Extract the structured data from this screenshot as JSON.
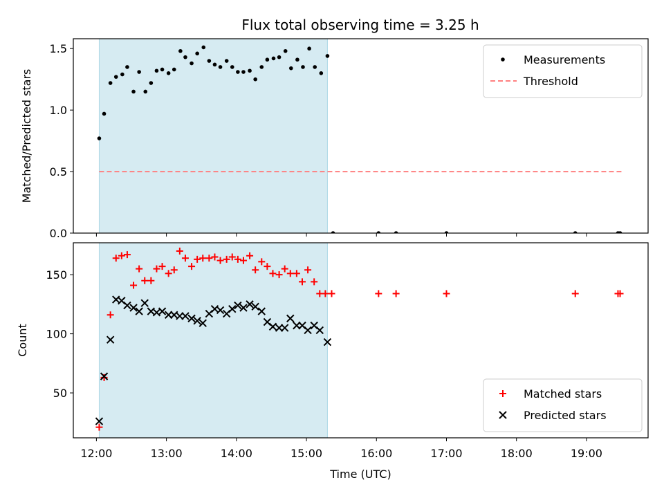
{
  "title": "Flux total observing time = 3.25 h",
  "colors": {
    "span": "#add8e6",
    "threshold": "#ff7f7f",
    "matched": "#ff0000",
    "predicted": "#000000",
    "measurement": "#000000"
  },
  "chart_data": [
    {
      "type": "scatter",
      "id": "ratio",
      "ylabel": "Matched/Predicted stars",
      "ylim": [
        0,
        1.58
      ],
      "xlim": [
        11.67,
        19.88
      ],
      "yticks": [
        0.0,
        0.5,
        1.0,
        1.5
      ],
      "ytick_labels": [
        "0.0",
        "0.5",
        "1.0",
        "1.5"
      ],
      "shaded_span": [
        12.04,
        15.3
      ],
      "legend": {
        "position": "top-right",
        "entries": [
          "Measurements",
          "Threshold"
        ]
      },
      "series": [
        {
          "name": "Measurements",
          "kind": "dots",
          "x": [
            12.04,
            12.11,
            12.2,
            12.28,
            12.37,
            12.44,
            12.53,
            12.61,
            12.7,
            12.78,
            12.86,
            12.94,
            13.03,
            13.11,
            13.2,
            13.27,
            13.36,
            13.44,
            13.53,
            13.61,
            13.69,
            13.77,
            13.86,
            13.94,
            14.02,
            14.1,
            14.19,
            14.27,
            14.36,
            14.44,
            14.53,
            14.61,
            14.7,
            14.78,
            14.87,
            14.95,
            15.04,
            15.12,
            15.21,
            15.3,
            15.38,
            16.03,
            16.28,
            17.0,
            18.84,
            19.45,
            19.48
          ],
          "y": [
            0.77,
            0.97,
            1.22,
            1.27,
            1.29,
            1.35,
            1.15,
            1.31,
            1.15,
            1.22,
            1.32,
            1.33,
            1.3,
            1.33,
            1.48,
            1.43,
            1.38,
            1.46,
            1.51,
            1.4,
            1.37,
            1.35,
            1.4,
            1.35,
            1.31,
            1.31,
            1.32,
            1.25,
            1.35,
            1.41,
            1.42,
            1.43,
            1.48,
            1.34,
            1.41,
            1.35,
            1.5,
            1.35,
            1.3,
            1.44,
            0.0,
            0.0,
            0.0,
            0.0,
            0.0,
            0.0,
            0.0
          ]
        },
        {
          "name": "Threshold",
          "kind": "dashed-line",
          "x": [
            12.04,
            19.5
          ],
          "y": [
            0.5,
            0.5
          ]
        }
      ]
    },
    {
      "type": "scatter",
      "id": "count",
      "ylabel": "Count",
      "xlabel": "Time (UTC)",
      "ylim": [
        12,
        177
      ],
      "xlim": [
        11.67,
        19.88
      ],
      "yticks": [
        50,
        100,
        150
      ],
      "ytick_labels": [
        "50",
        "100",
        "150"
      ],
      "xticks": [
        12,
        13,
        14,
        15,
        16,
        17,
        18,
        19
      ],
      "xtick_labels": [
        "12:00",
        "13:00",
        "14:00",
        "15:00",
        "16:00",
        "17:00",
        "18:00",
        "19:00"
      ],
      "shaded_span": [
        12.04,
        15.3
      ],
      "legend": {
        "position": "bottom-right",
        "entries": [
          "Matched stars",
          "Predicted stars"
        ]
      },
      "series": [
        {
          "name": "Matched stars",
          "kind": "plus",
          "x": [
            12.04,
            12.11,
            12.2,
            12.28,
            12.36,
            12.44,
            12.53,
            12.61,
            12.69,
            12.78,
            12.86,
            12.94,
            13.03,
            13.11,
            13.19,
            13.27,
            13.36,
            13.44,
            13.52,
            13.61,
            13.69,
            13.77,
            13.86,
            13.94,
            14.02,
            14.1,
            14.19,
            14.27,
            14.36,
            14.44,
            14.52,
            14.61,
            14.69,
            14.77,
            14.86,
            14.94,
            15.02,
            15.11,
            15.19,
            15.27,
            15.36,
            16.03,
            16.28,
            17.0,
            18.84,
            19.45,
            19.48
          ],
          "y": [
            21,
            63,
            116,
            164,
            166,
            167,
            141,
            155,
            145,
            145,
            155,
            157,
            151,
            154,
            170,
            164,
            157,
            163,
            164,
            164,
            165,
            162,
            163,
            165,
            163,
            162,
            166,
            154,
            161,
            157,
            151,
            150,
            155,
            151,
            151,
            144,
            154,
            144,
            134,
            134,
            134,
            134,
            134,
            134,
            134,
            134,
            134
          ]
        },
        {
          "name": "Predicted stars",
          "kind": "x",
          "x": [
            12.04,
            12.11,
            12.2,
            12.28,
            12.36,
            12.44,
            12.53,
            12.61,
            12.69,
            12.78,
            12.86,
            12.94,
            13.03,
            13.11,
            13.19,
            13.27,
            13.36,
            13.44,
            13.52,
            13.61,
            13.69,
            13.77,
            13.86,
            13.94,
            14.02,
            14.1,
            14.19,
            14.27,
            14.36,
            14.44,
            14.52,
            14.61,
            14.69,
            14.77,
            14.86,
            14.94,
            15.02,
            15.11,
            15.19,
            15.3
          ],
          "y": [
            26,
            64,
            95,
            129,
            128,
            124,
            122,
            119,
            126,
            119,
            118,
            119,
            116,
            116,
            115,
            115,
            113,
            111,
            109,
            117,
            121,
            120,
            117,
            121,
            124,
            122,
            125,
            123,
            119,
            110,
            106,
            105,
            105,
            113,
            107,
            107,
            103,
            107,
            103,
            93
          ]
        }
      ]
    }
  ]
}
